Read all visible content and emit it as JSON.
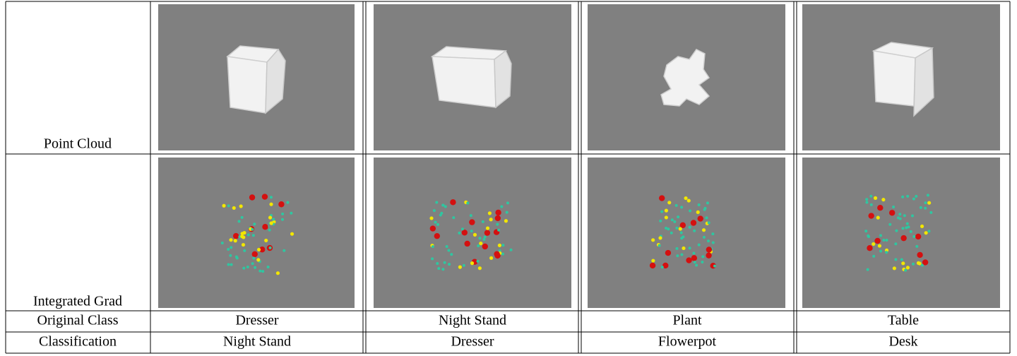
{
  "table": {
    "rows": [
      {
        "label": "Point Cloud"
      },
      {
        "label": "Integrated Grad"
      },
      {
        "label": "Original Class",
        "cells": [
          "Dresser",
          "Night Stand",
          "Plant",
          "Table"
        ]
      },
      {
        "label": "Classification",
        "cells": [
          "Night Stand",
          "Dresser",
          "Flowerpot",
          "Desk"
        ]
      }
    ]
  }
}
